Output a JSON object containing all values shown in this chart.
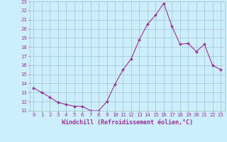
{
  "x": [
    0,
    1,
    2,
    3,
    4,
    5,
    6,
    7,
    8,
    9,
    10,
    11,
    12,
    13,
    14,
    15,
    16,
    17,
    18,
    19,
    20,
    21,
    22,
    23
  ],
  "y": [
    13.5,
    13.0,
    12.5,
    11.9,
    11.7,
    11.5,
    11.5,
    11.0,
    11.0,
    12.0,
    13.9,
    15.5,
    16.7,
    18.8,
    20.5,
    21.5,
    22.8,
    20.3,
    18.3,
    18.4,
    17.5,
    18.3,
    16.0,
    15.5
  ],
  "line_color": "#993399",
  "marker": "D",
  "marker_size": 2.0,
  "bg_color": "#cceeff",
  "grid_color": "#aacccc",
  "xlabel": "Windchill (Refroidissement éolien,°C)",
  "xlabel_color": "#993399",
  "tick_color": "#993399",
  "ylim": [
    11,
    23
  ],
  "xlim": [
    -0.5,
    23.5
  ],
  "yticks": [
    11,
    12,
    13,
    14,
    15,
    16,
    17,
    18,
    19,
    20,
    21,
    22,
    23
  ],
  "xticks": [
    0,
    1,
    2,
    3,
    4,
    5,
    6,
    7,
    8,
    9,
    10,
    11,
    12,
    13,
    14,
    15,
    16,
    17,
    18,
    19,
    20,
    21,
    22,
    23
  ],
  "tick_fontsize": 5.2,
  "xlabel_fontsize": 6.0
}
